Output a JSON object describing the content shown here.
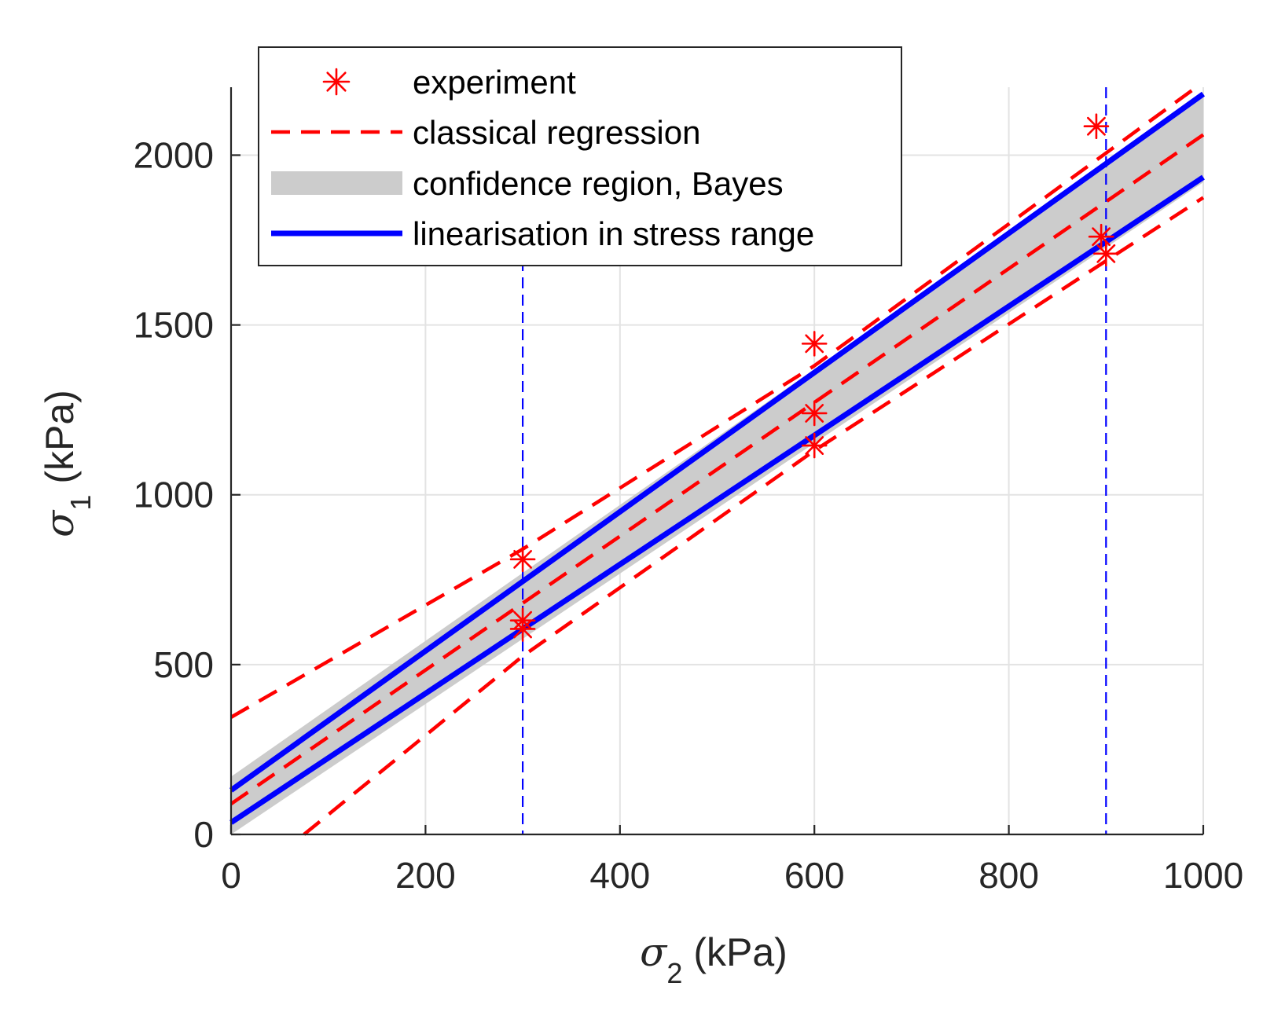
{
  "chart_data": {
    "type": "line",
    "title": "",
    "xlabel": {
      "symbol": "σ",
      "subscript": "2",
      "unit": "(kPa)"
    },
    "ylabel": {
      "symbol": "σ",
      "subscript": "1",
      "unit": "(kPa)"
    },
    "xlim": [
      0,
      1000
    ],
    "ylim": [
      0,
      2200
    ],
    "xticks": [
      0,
      200,
      400,
      600,
      800,
      1000
    ],
    "yticks": [
      0,
      500,
      1000,
      1500,
      2000
    ],
    "xtick_labels": [
      "0",
      "200",
      "400",
      "600",
      "800",
      "1000"
    ],
    "ytick_labels": [
      "0",
      "500",
      "1000",
      "1500",
      "2000"
    ],
    "grid": true,
    "legend_position": "top-left",
    "colors": {
      "experiment": "#ff0000",
      "regression": "#ff0000",
      "confidence": "#cccccc",
      "linearisation": "#0000ff",
      "grid": "#e3e3e3",
      "axis": "#262626"
    },
    "series": [
      {
        "name": "experiment",
        "kind": "scatter",
        "points": [
          [
            300,
            810
          ],
          [
            300,
            630
          ],
          [
            300,
            605
          ],
          [
            600,
            1445
          ],
          [
            600,
            1240
          ],
          [
            600,
            1145
          ],
          [
            890,
            2085
          ],
          [
            895,
            1760
          ],
          [
            900,
            1710
          ]
        ]
      },
      {
        "name": "classical regression",
        "kind": "dashed-lines",
        "lines": [
          {
            "role": "mean",
            "x": [
              0,
              1000
            ],
            "y": [
              90,
              2060
            ]
          },
          {
            "role": "upper",
            "x": [
              0,
              300,
              600,
              1000
            ],
            "y": [
              345,
              840,
              1380,
              2215
            ]
          },
          {
            "role": "lower",
            "x": [
              75,
              300,
              600,
              1000
            ],
            "y": [
              0,
              525,
              1130,
              1875
            ]
          }
        ]
      },
      {
        "name": "confidence region, Bayes",
        "kind": "band",
        "x": [
          0,
          1000
        ],
        "upper": [
          170,
          2170
        ],
        "lower": [
          0,
          1920
        ]
      },
      {
        "name": "linearisation in stress range",
        "kind": "lines",
        "lines": [
          {
            "role": "upper",
            "x": [
              0,
              1000
            ],
            "y": [
              130,
              2180
            ]
          },
          {
            "role": "lower",
            "x": [
              0,
              1000
            ],
            "y": [
              35,
              1935
            ]
          }
        ]
      }
    ],
    "vertical_markers": [
      {
        "x": 300,
        "style": "dashed",
        "color": "#0000ff"
      },
      {
        "x": 900,
        "style": "dashed",
        "color": "#0000ff"
      }
    ],
    "legend": [
      {
        "label": "experiment",
        "symbol": "star"
      },
      {
        "label": "classical regression",
        "symbol": "dash"
      },
      {
        "label": "confidence region, Bayes",
        "symbol": "band"
      },
      {
        "label": "linearisation in stress range",
        "symbol": "line"
      }
    ]
  }
}
